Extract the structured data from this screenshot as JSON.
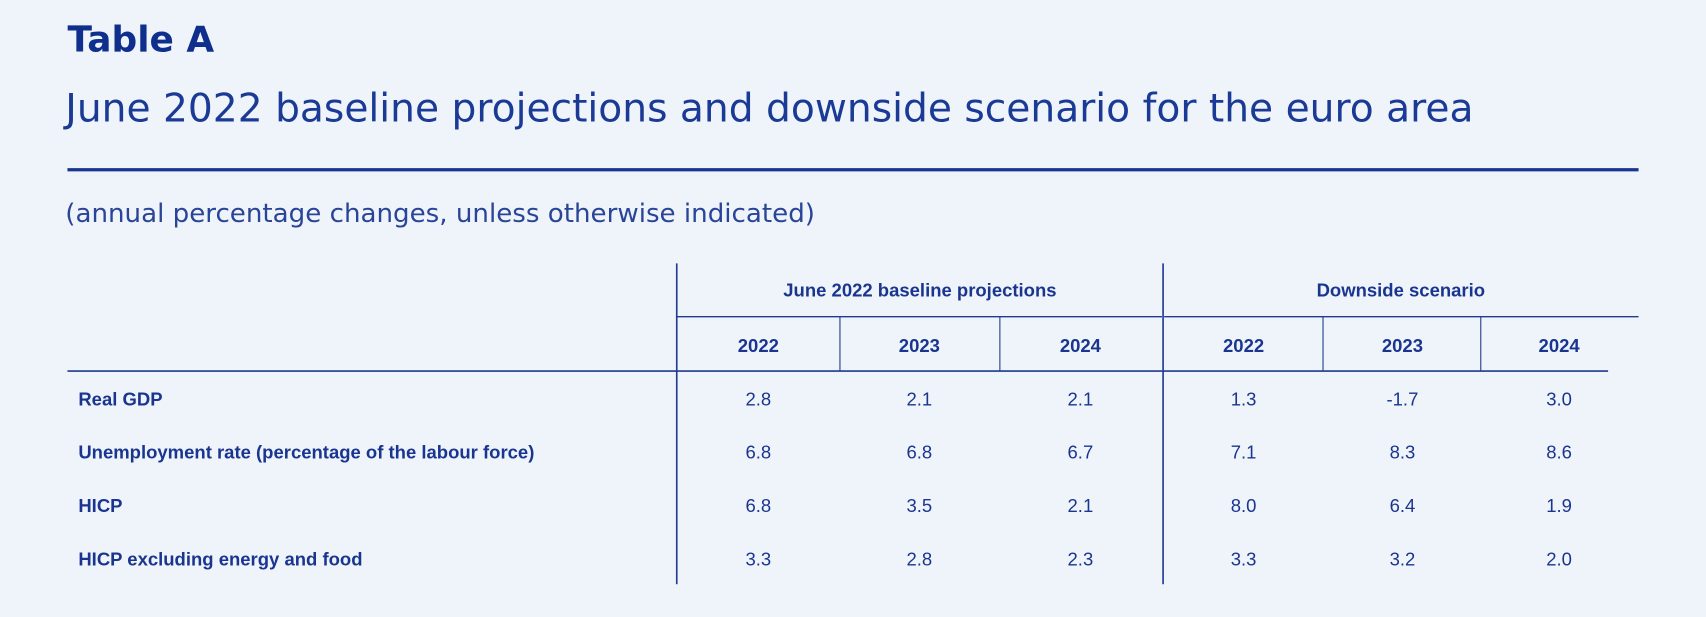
{
  "header": {
    "title": "Table A",
    "subtitle": "June 2022 baseline projections and downside scenario for the euro area"
  },
  "note": "(annual percentage changes, unless otherwise indicated)",
  "table": {
    "groups": [
      {
        "title": "June 2022 baseline projections",
        "years": [
          "2022",
          "2023",
          "2024"
        ]
      },
      {
        "title": "Downside scenario",
        "years": [
          "2022",
          "2023",
          "2024"
        ]
      }
    ],
    "rows": [
      {
        "label": "Real GDP",
        "values": [
          "2.8",
          "2.1",
          "2.1",
          "1.3",
          "-1.7",
          "3.0"
        ]
      },
      {
        "label": "Unemployment rate (percentage of the labour force)",
        "values": [
          "6.8",
          "6.8",
          "6.7",
          "7.1",
          "8.3",
          "8.6"
        ]
      },
      {
        "label": "HICP",
        "values": [
          "6.8",
          "3.5",
          "2.1",
          "8.0",
          "6.4",
          "1.9"
        ]
      },
      {
        "label": "HICP excluding energy and food",
        "values": [
          "3.3",
          "2.8",
          "2.3",
          "3.3",
          "3.2",
          "2.0"
        ]
      }
    ]
  }
}
